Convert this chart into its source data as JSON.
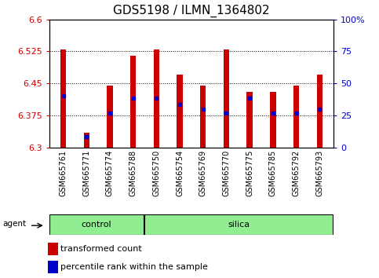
{
  "title": "GDS5198 / ILMN_1364802",
  "samples": [
    "GSM665761",
    "GSM665771",
    "GSM665774",
    "GSM665788",
    "GSM665750",
    "GSM665754",
    "GSM665769",
    "GSM665770",
    "GSM665775",
    "GSM665785",
    "GSM665792",
    "GSM665793"
  ],
  "bar_tops": [
    6.53,
    6.335,
    6.445,
    6.515,
    6.53,
    6.47,
    6.445,
    6.53,
    6.43,
    6.43,
    6.445,
    6.47
  ],
  "blue_dots": [
    6.42,
    6.325,
    6.38,
    6.415,
    6.415,
    6.4,
    6.39,
    6.38,
    6.415,
    6.38,
    6.38,
    6.39
  ],
  "bar_base": 6.3,
  "ylim": [
    6.3,
    6.6
  ],
  "yticks_left": [
    6.3,
    6.375,
    6.45,
    6.525,
    6.6
  ],
  "yticks_right": [
    0,
    25,
    50,
    75,
    100
  ],
  "ytick_labels_right": [
    "0",
    "25",
    "50",
    "75",
    "100%"
  ],
  "bar_color": "#cc0000",
  "dot_color": "#0000cc",
  "bar_width": 0.25,
  "n_control": 4,
  "control_label": "control",
  "silica_label": "silica",
  "agent_label": "agent",
  "legend_red": "transformed count",
  "legend_blue": "percentile rank within the sample",
  "grid_color": "black",
  "tick_label_color_left": "#cc0000",
  "tick_label_color_right": "#0000cc",
  "title_fontsize": 11,
  "axis_fontsize": 8,
  "xtick_fontsize": 7,
  "label_area_color": "#90ee90"
}
